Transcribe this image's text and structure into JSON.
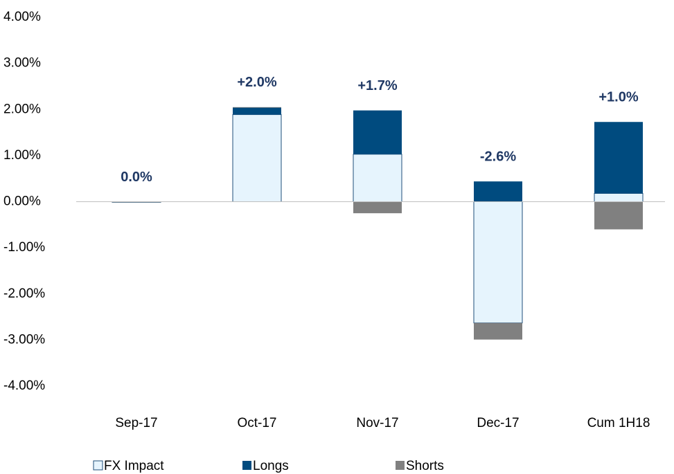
{
  "chart_data": {
    "type": "stacked_bar",
    "categories": [
      "Sep-17",
      "Oct-17",
      "Nov-17",
      "Dec-17",
      "Cum 1H18"
    ],
    "series": [
      {
        "name": "FX Impact",
        "color": "#e6f4fd",
        "values": [
          0,
          1.89,
          1.03,
          -2.63,
          0.18
        ]
      },
      {
        "name": "Longs",
        "color": "#004b7f",
        "values": [
          0,
          0.16,
          0.95,
          0.44,
          1.55
        ]
      },
      {
        "name": "Shorts",
        "color": "#808080",
        "values": [
          0,
          0,
          -0.25,
          -0.36,
          -0.6
        ]
      }
    ],
    "totals": {
      "values": [
        0.0,
        2.0,
        1.7,
        -2.6,
        1.0
      ],
      "value_labels": [
        "0.0%",
        "+2.0%",
        "+1.7%",
        "-2.6%",
        "+1.0%"
      ]
    },
    "ylim": [
      -4,
      4
    ],
    "yticks": [
      {
        "value": 4,
        "label": "4.00%"
      },
      {
        "value": 3,
        "label": "3.00%"
      },
      {
        "value": 2,
        "label": "2.00%"
      },
      {
        "value": 1,
        "label": "1.00%"
      },
      {
        "value": 0,
        "label": "0.00%"
      },
      {
        "value": -1,
        "label": "-1.00%"
      },
      {
        "value": -2,
        "label": "-2.00%"
      },
      {
        "value": -3,
        "label": "-3.00%"
      },
      {
        "value": -4,
        "label": "-4.00%"
      }
    ],
    "legend": "bottom"
  }
}
